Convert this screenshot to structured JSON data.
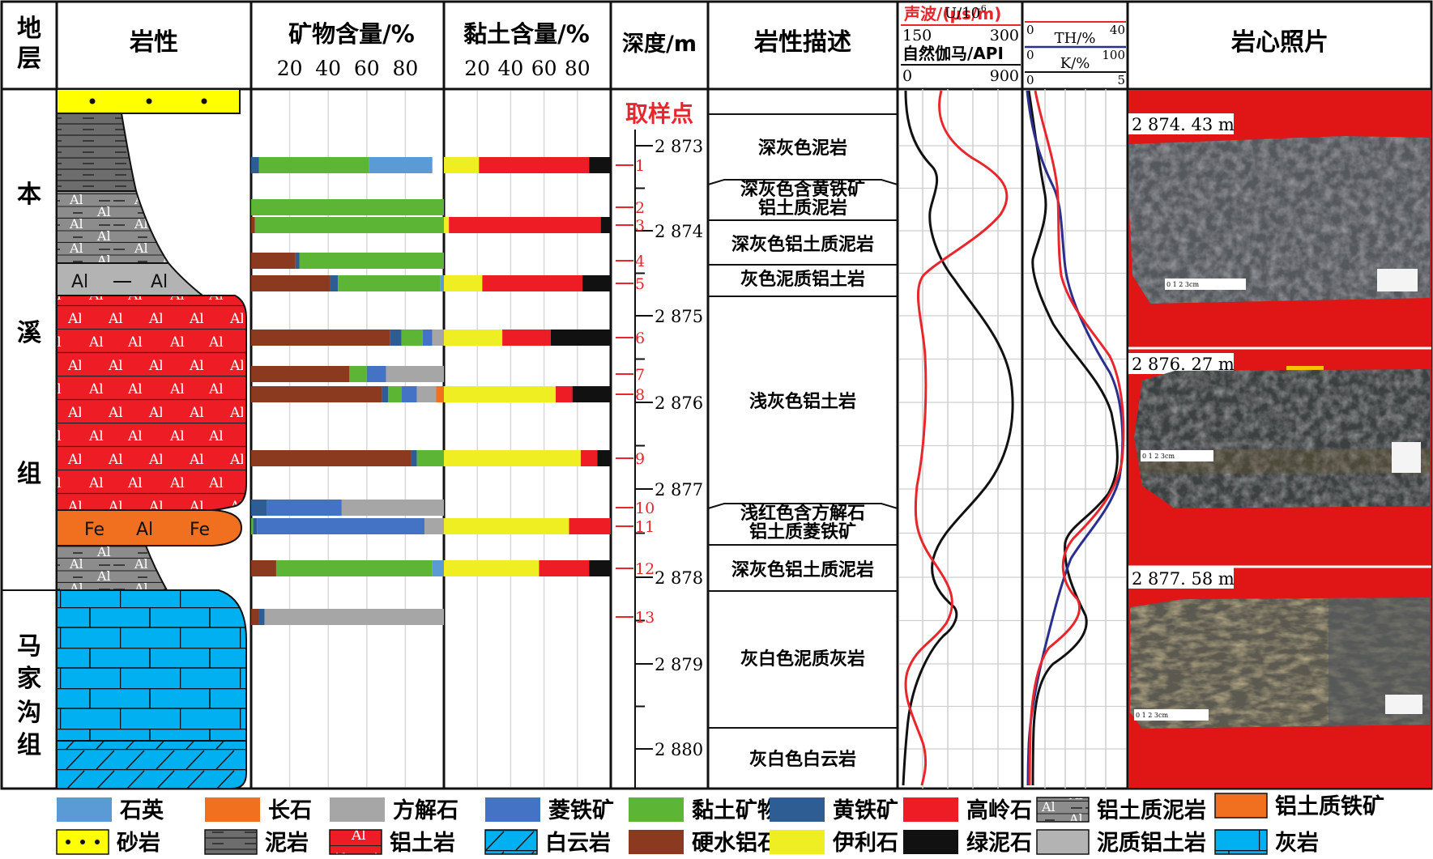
{
  "headers": {
    "stratum": "地层",
    "lithology": "岩性",
    "mineral": "矿物含量/%",
    "clay": "黏土含量/%",
    "depth": "深度/m",
    "description": "岩性描述",
    "logs1_line1": "声波/(μs/m)",
    "logs1_line1_min": "150",
    "logs1_line1_max": "300",
    "logs1_line2": "自然伽马/API",
    "logs1_line2_min": "0",
    "logs1_line2_max": "900",
    "logs2_u": "U/10",
    "logs2_u_exp": "-6",
    "logs2_u_min": "0",
    "logs2_u_max": "40",
    "logs2_th": "TH/%",
    "logs2_th_min": "0",
    "logs2_th_max": "100",
    "logs2_k": "K/%",
    "logs2_k_min": "0",
    "logs2_k_max": "5",
    "photo": "岩心照片"
  },
  "percent_ticks": [
    "20",
    "40",
    "60",
    "80"
  ],
  "formations": [
    {
      "chars": [
        "本",
        "溪",
        "组"
      ]
    },
    {
      "chars": [
        "马",
        "家",
        "沟",
        "组"
      ]
    }
  ],
  "sampling_label": "取样点",
  "depth_ticks": [
    "2 873",
    "2 874",
    "2 875",
    "2 876",
    "2 877",
    "2 878",
    "2 879",
    "2 880"
  ],
  "samples": [
    "1",
    "2",
    "3",
    "4",
    "5",
    "6",
    "7",
    "8",
    "9",
    "10",
    "11",
    "12",
    "13"
  ],
  "descriptions": [
    {
      "lines": [
        "深灰色泥岩"
      ]
    },
    {
      "lines": [
        "深灰色含黄铁矿",
        "铝土质泥岩"
      ]
    },
    {
      "lines": [
        "深灰色铝土质泥岩"
      ]
    },
    {
      "lines": [
        "灰色泥质铝土岩"
      ]
    },
    {
      "lines": [
        "浅灰色铝土岩"
      ]
    },
    {
      "lines": [
        "浅红色含方解石",
        "铝土质菱铁矿"
      ]
    },
    {
      "lines": [
        "深灰色铝土质泥岩"
      ]
    },
    {
      "lines": [
        "灰白色泥质灰岩"
      ]
    },
    {
      "lines": [
        "灰白色白云岩"
      ]
    }
  ],
  "photos": [
    {
      "depth": "2 874. 43 m",
      "scale": "0  1  2  3cm"
    },
    {
      "depth": "2 876. 27 m",
      "scale": "0  1  2  3cm"
    },
    {
      "depth": "2 877. 58 m",
      "scale": "0  1  2  3cm"
    }
  ],
  "lith_labels": {
    "al": "Al",
    "fe": "Fe"
  },
  "colors": {
    "quartz": "#5b9bd5",
    "feldspar": "#f07020",
    "calcite": "#a6a6a6",
    "siderite": "#4472c4",
    "clay": "#5cb534",
    "pyrite": "#2e5d94",
    "kaolinite": "#ee1c24",
    "diaspore": "#8b3a20",
    "illite": "#eeee22",
    "chlorite": "#111111",
    "sandstone": "#ffff00",
    "mudstone": "#6d6d6d",
    "bauxite": "#ee1c24",
    "dolomite": "#00b0f0",
    "limestone": "#00b0f0",
    "ferro": "#f07020",
    "bauxitic_mud": "#8c8c8c",
    "muddy_bauxite": "#b3b3b3",
    "log_red": "#e8262c",
    "log_blue": "#2b2e8c",
    "log_black": "#111111"
  },
  "legend": [
    {
      "key": "quartz",
      "label": "石英"
    },
    {
      "key": "feldspar",
      "label": "长石"
    },
    {
      "key": "calcite",
      "label": "方解石"
    },
    {
      "key": "siderite",
      "label": "菱铁矿"
    },
    {
      "key": "clay",
      "label": "黏土矿物"
    },
    {
      "key": "pyrite",
      "label": "黄铁矿"
    },
    {
      "key": "kaolinite",
      "label": "高岭石"
    },
    {
      "key": "bauxitic_mud",
      "label": "铝土质泥岩"
    },
    {
      "key": "ferro",
      "label": "铝土质铁矿"
    },
    {
      "key": "sandstone",
      "label": "砂岩"
    },
    {
      "key": "mudstone",
      "label": "泥岩"
    },
    {
      "key": "bauxite",
      "label": "铝土岩"
    },
    {
      "key": "dolomite",
      "label": "白云岩"
    },
    {
      "key": "diaspore",
      "label": "硬水铝石"
    },
    {
      "key": "illite",
      "label": "伊利石"
    },
    {
      "key": "chlorite",
      "label": "绿泥石"
    },
    {
      "key": "muddy_bauxite",
      "label": "泥质铝土岩"
    },
    {
      "key": "limestone",
      "label": "灰岩"
    }
  ],
  "mineral_bars": [
    {
      "sample": "1",
      "parts": [
        [
          "pyrite",
          4
        ],
        [
          "clay",
          57
        ],
        [
          "quartz",
          33
        ]
      ]
    },
    {
      "sample": "2",
      "parts": [
        [
          "clay",
          100
        ]
      ]
    },
    {
      "sample": "3",
      "parts": [
        [
          "diaspore",
          2
        ],
        [
          "clay",
          98
        ]
      ]
    },
    {
      "sample": "4",
      "parts": [
        [
          "diaspore",
          23
        ],
        [
          "pyrite",
          2
        ],
        [
          "clay",
          75
        ]
      ]
    },
    {
      "sample": "5",
      "parts": [
        [
          "diaspore",
          41
        ],
        [
          "pyrite",
          4
        ],
        [
          "clay",
          53
        ],
        [
          "quartz",
          2
        ]
      ]
    },
    {
      "sample": "6",
      "parts": [
        [
          "diaspore",
          72
        ],
        [
          "pyrite",
          6
        ],
        [
          "clay",
          11
        ],
        [
          "siderite",
          5
        ],
        [
          "calcite",
          6
        ]
      ]
    },
    {
      "sample": "7",
      "parts": [
        [
          "diaspore",
          51
        ],
        [
          "clay",
          9
        ],
        [
          "siderite",
          10
        ],
        [
          "calcite",
          30
        ]
      ]
    },
    {
      "sample": "8",
      "parts": [
        [
          "diaspore",
          68
        ],
        [
          "pyrite",
          3
        ],
        [
          "clay",
          7
        ],
        [
          "siderite",
          8
        ],
        [
          "calcite",
          10
        ],
        [
          "feldspar",
          4
        ]
      ]
    },
    {
      "sample": "9",
      "parts": [
        [
          "diaspore",
          83
        ],
        [
          "pyrite",
          3
        ],
        [
          "clay",
          14
        ]
      ]
    },
    {
      "sample": "10",
      "parts": [
        [
          "pyrite",
          8
        ],
        [
          "siderite",
          39
        ],
        [
          "calcite",
          53
        ]
      ]
    },
    {
      "sample": "11",
      "parts": [
        [
          "clay",
          1
        ],
        [
          "pyrite",
          2
        ],
        [
          "siderite",
          87
        ],
        [
          "calcite",
          10
        ]
      ]
    },
    {
      "sample": "12",
      "parts": [
        [
          "diaspore",
          13
        ],
        [
          "clay",
          81
        ],
        [
          "quartz",
          6
        ]
      ]
    },
    {
      "sample": "13",
      "parts": [
        [
          "diaspore",
          4
        ],
        [
          "pyrite",
          3
        ],
        [
          "calcite",
          93
        ]
      ]
    }
  ],
  "clay_bars": [
    {
      "sample": "1",
      "parts": [
        [
          "illite",
          21
        ],
        [
          "kaolinite",
          66
        ],
        [
          "chlorite",
          13
        ]
      ]
    },
    {
      "sample": "3",
      "parts": [
        [
          "illite",
          3
        ],
        [
          "kaolinite",
          91
        ],
        [
          "chlorite",
          6
        ]
      ]
    },
    {
      "sample": "5",
      "parts": [
        [
          "illite",
          23
        ],
        [
          "kaolinite",
          60
        ],
        [
          "chlorite",
          17
        ]
      ]
    },
    {
      "sample": "6",
      "parts": [
        [
          "illite",
          35
        ],
        [
          "kaolinite",
          29
        ],
        [
          "chlorite",
          36
        ]
      ]
    },
    {
      "sample": "8",
      "parts": [
        [
          "illite",
          67
        ],
        [
          "kaolinite",
          10
        ],
        [
          "chlorite",
          23
        ]
      ]
    },
    {
      "sample": "9",
      "parts": [
        [
          "illite",
          82
        ],
        [
          "kaolinite",
          10
        ],
        [
          "chlorite",
          8
        ]
      ]
    },
    {
      "sample": "11",
      "parts": [
        [
          "illite",
          75
        ],
        [
          "kaolinite",
          25
        ]
      ]
    },
    {
      "sample": "12",
      "parts": [
        [
          "illite",
          57
        ],
        [
          "kaolinite",
          30
        ],
        [
          "chlorite",
          13
        ]
      ]
    }
  ]
}
